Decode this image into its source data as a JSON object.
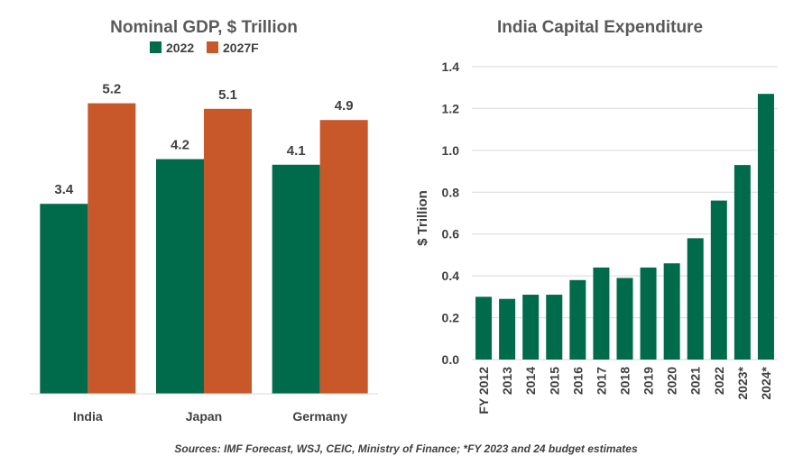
{
  "colors": {
    "series_2022": "#006b4a",
    "series_2027": "#c8572a",
    "bar_right": "#006b4a"
  },
  "chart_data": [
    {
      "type": "bar",
      "title": "Nominal GDP, $ Trillion",
      "categories": [
        "India",
        "Japan",
        "Germany"
      ],
      "series": [
        {
          "name": "2022",
          "values": [
            3.4,
            4.2,
            4.1
          ]
        },
        {
          "name": "2027F",
          "values": [
            5.2,
            5.1,
            4.9
          ]
        }
      ],
      "data_labels": [
        [
          "3.4",
          "4.2",
          "4.1"
        ],
        [
          "5.2",
          "5.1",
          "4.9"
        ]
      ],
      "legend": "top",
      "grid": false,
      "ylim": [
        0,
        6.0
      ]
    },
    {
      "type": "bar",
      "title": "India Capital Expenditure",
      "ylabel": "$ Trillion",
      "categories": [
        "FY 2012",
        "2013",
        "2014",
        "2015",
        "2016",
        "2017",
        "2018",
        "2019",
        "2020",
        "2021",
        "2022",
        "2023*",
        "2024*"
      ],
      "values": [
        0.3,
        0.29,
        0.31,
        0.31,
        0.38,
        0.44,
        0.39,
        0.44,
        0.46,
        0.58,
        0.76,
        0.93,
        1.27
      ],
      "yticks": [
        "0.0",
        "0.2",
        "0.4",
        "0.6",
        "0.8",
        "1.0",
        "1.2",
        "1.4"
      ],
      "ylim": [
        0,
        1.4
      ],
      "grid": true
    }
  ],
  "footer": {
    "source": "Sources: IMF Forecast, WSJ, CEIC, Ministry of Finance; *FY 2023  and 24 budget estimates"
  }
}
